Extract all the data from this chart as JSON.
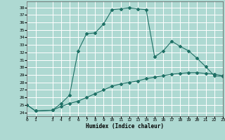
{
  "xlabel": "Humidex (Indice chaleur)",
  "xlim": [
    0,
    23
  ],
  "ylim": [
    23.5,
    38.8
  ],
  "yticks": [
    24,
    25,
    26,
    27,
    28,
    29,
    30,
    31,
    32,
    33,
    34,
    35,
    36,
    37,
    38
  ],
  "xticks": [
    0,
    1,
    3,
    4,
    5,
    6,
    7,
    8,
    9,
    10,
    11,
    12,
    13,
    14,
    15,
    16,
    17,
    18,
    19,
    20,
    21,
    22,
    23
  ],
  "background_color": "#aed9d2",
  "grid_color": "#ffffff",
  "line_color": "#1e7065",
  "curve1_x": [
    0,
    1,
    3,
    4,
    5,
    6,
    7,
    8,
    9,
    10,
    11,
    12,
    13,
    14,
    15,
    16,
    17,
    18,
    19,
    20,
    21,
    22,
    23
  ],
  "curve1_y": [
    25.0,
    24.2,
    24.3,
    25.2,
    26.3,
    32.2,
    34.5,
    34.6,
    35.8,
    37.7,
    37.8,
    37.95,
    37.8,
    37.7,
    31.4,
    32.2,
    33.5,
    32.8,
    32.2,
    31.2,
    30.1,
    28.9,
    28.8
  ],
  "curve2_x": [
    0,
    1,
    3,
    4,
    5,
    6,
    7,
    8,
    9,
    10,
    11,
    12,
    13,
    14,
    15,
    16,
    17,
    18,
    19,
    20,
    21,
    22,
    23
  ],
  "curve2_y": [
    25.0,
    24.2,
    24.3,
    24.8,
    25.2,
    25.5,
    26.0,
    26.5,
    27.0,
    27.5,
    27.8,
    28.0,
    28.2,
    28.5,
    28.7,
    28.9,
    29.1,
    29.2,
    29.3,
    29.3,
    29.2,
    29.1,
    28.9
  ]
}
